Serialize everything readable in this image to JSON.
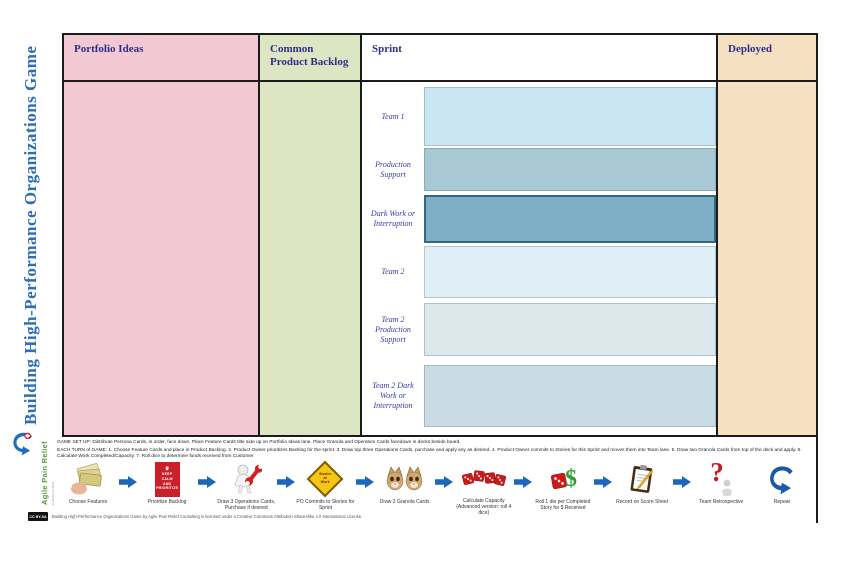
{
  "title": "Building High-Performance Organizations Game",
  "logo": {
    "name": "Agile Pain Relief",
    "subtitle": "CONSULTING"
  },
  "board": {
    "columns": [
      {
        "label": "Portfolio Ideas",
        "color": "#f2c8d3"
      },
      {
        "label": "Common Product Backlog",
        "color": "#dde6c3"
      },
      {
        "label": "Sprint",
        "color": "#ffffff"
      },
      {
        "label": "Deployed",
        "color": "#f5e0c2"
      }
    ],
    "sprint_rows": [
      {
        "label": "Team 1",
        "color": "#cbe6f3"
      },
      {
        "label": "Production Support",
        "color": "#a8c8d5"
      },
      {
        "label": "Dark Work or Interruption",
        "color": "#7eaec5"
      },
      {
        "label": "Team 2",
        "color": "#e0eff6"
      },
      {
        "label": "Team 2 Production Support",
        "color": "#dde8ed"
      },
      {
        "label": "Team 2 Dark Work or Interruption",
        "color": "#c9dce5"
      }
    ]
  },
  "instructions": {
    "setup": "GAME SET UP: Distribute Persona Cards, in order, face down. Place Feature Cards title side up on Portfolio Ideas lane. Place Granola and Operation Cards facedown in decks beside board.",
    "turn": "EACH TURN of GAME: 1. Choose Feature Cards and place in Product Backlog. 2. Product Owner prioritizes Backlog for the sprint. 3. Draw top three Operations Cards, purchase and apply any as desired. 4. Product Owner commits to Stories for this Sprint and moves them into Team lane. 5. Draw two Granola Cards from top of the deck and apply. 6. Calculate Work Completed/Capacity. 7. Roll dice to determine funds received from Customer"
  },
  "steps": [
    {
      "icon": "cards-hand-icon",
      "caption": "Choose Features"
    },
    {
      "icon": "keep-calm-icon",
      "caption": "Prioritize Backlog",
      "poster_lines": [
        "KEEP",
        "CALM",
        "AND",
        "PRIORITIZE"
      ]
    },
    {
      "icon": "wrench-figure-icon",
      "caption": "Draw 3 Operations Cards, Purchase if desired"
    },
    {
      "icon": "stories-sign-icon",
      "caption": "PO Commits to Stories for Sprint",
      "sign_lines": [
        "Stories",
        "at",
        "Work"
      ]
    },
    {
      "icon": "cats-icon",
      "caption": "Draw 2 Granola Cards"
    },
    {
      "icon": "dice-icon",
      "caption": "Calculate Capacity (Advanced version: roll 4 dice)"
    },
    {
      "icon": "die-dollar-icon",
      "caption": "Roll 1 die per Completed Story for $ Received"
    },
    {
      "icon": "clipboard-icon",
      "caption": "Record on Score Sheet"
    },
    {
      "icon": "question-icon",
      "caption": "Team Retrospective"
    },
    {
      "icon": "repeat-icon",
      "caption": "Repeat"
    }
  ],
  "footer": {
    "cc_badge": "CC BY-SA",
    "license": "Building High-Performance Organizations Game by Agile Pain Relief Consulting is licensed under a Creative Commons Attribution-ShareAlike 4.0 International License."
  },
  "colors": {
    "header_text": "#2e2e8a",
    "row_label_text": "#3939a5",
    "title_text": "#2e6db6",
    "arrow": "#1e66b8",
    "border": "#1b1b1b"
  }
}
